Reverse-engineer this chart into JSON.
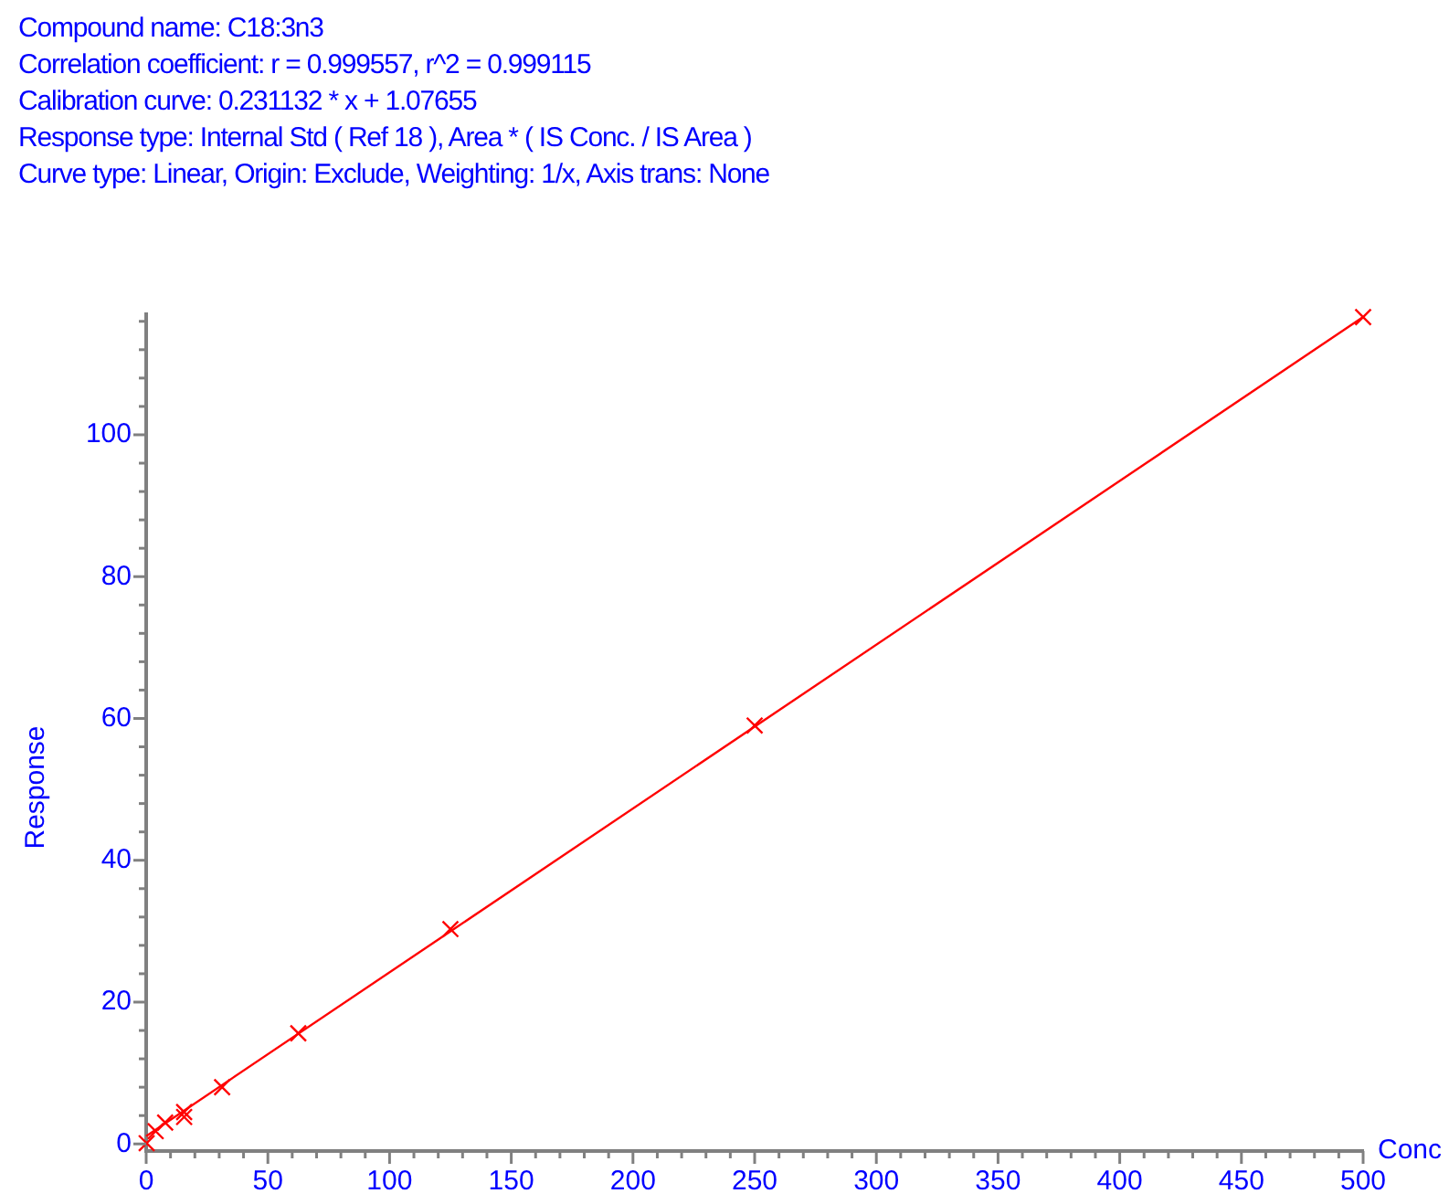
{
  "chart_data": {
    "type": "scatter",
    "title": "Compound name: C18:3n3",
    "annotations": [
      "Correlation coefficient: r = 0.999557, r^2 = 0.999115",
      "Calibration curve: 0.231132 * x + 1.07655",
      "Response type: Internal Std ( Ref 18 ), Area * ( IS Conc. / IS Area )",
      "Curve type: Linear, Origin: Exclude, Weighting: 1/x, Axis trans: None"
    ],
    "xlabel": "Conc",
    "ylabel": "Response",
    "series": [
      {
        "type": "scatter",
        "color": "#ff0000",
        "marker": "cross",
        "x": [
          500,
          250,
          125,
          62.5,
          31.2,
          15.6,
          15.6,
          7.8,
          3.9,
          2,
          1,
          0.5,
          0.2
        ],
        "values": [
          116.6,
          59.0,
          30.3,
          15.6,
          8.0,
          4.5,
          3.8,
          3.0,
          1.8,
          null,
          null,
          null,
          0.1
        ]
      },
      {
        "type": "line",
        "color": "#ff0000",
        "marker": "none",
        "x": [
          0,
          500
        ],
        "values": [
          1.1,
          116.6
        ]
      }
    ],
    "xlim": [
      0,
      500
    ],
    "ylim": [
      -1,
      117
    ],
    "xticks": [
      0,
      {
        "value": 10,
        "label": null
      },
      {
        "value": 20,
        "label": null
      },
      {
        "value": 30,
        "label": null
      },
      {
        "value": 40,
        "label": null
      },
      50,
      {
        "value": 60,
        "label": null
      },
      {
        "value": 70,
        "label": null
      },
      {
        "value": 80,
        "label": null
      },
      {
        "value": 90,
        "label": null
      },
      100,
      {
        "value": 110,
        "label": null
      },
      {
        "value": 120,
        "label": null
      },
      {
        "value": 130,
        "label": null
      },
      {
        "value": 140,
        "label": null
      },
      150,
      {
        "value": 160,
        "label": null
      },
      {
        "value": 170,
        "label": null
      },
      {
        "value": 180,
        "label": null
      },
      {
        "value": 190,
        "label": null
      },
      200,
      {
        "value": 210,
        "label": null
      },
      {
        "value": 220,
        "label": null
      },
      {
        "value": 230,
        "label": null
      },
      {
        "value": 240,
        "label": null
      },
      250,
      {
        "value": 260,
        "label": null
      },
      {
        "value": 270,
        "label": null
      },
      {
        "value": 280,
        "label": null
      },
      {
        "value": 290,
        "label": null
      },
      300,
      {
        "value": 310,
        "label": null
      },
      {
        "value": 320,
        "label": null
      },
      {
        "value": 330,
        "label": null
      },
      {
        "value": 340,
        "label": null
      },
      350,
      {
        "value": 360,
        "label": null
      },
      {
        "value": 370,
        "label": null
      },
      {
        "value": 380,
        "label": null
      },
      {
        "value": 390,
        "label": null
      },
      400,
      {
        "value": 410,
        "label": null
      },
      {
        "value": 420,
        "label": null
      },
      {
        "value": 430,
        "label": null
      },
      {
        "value": 440,
        "label": null
      },
      450,
      {
        "value": 460,
        "label": null
      },
      {
        "value": 470,
        "label": null
      },
      {
        "value": 480,
        "label": null
      },
      {
        "value": 490,
        "label": null
      },
      500
    ],
    "yticks": [
      0,
      {
        "value": 4,
        "label": null
      },
      {
        "value": 8,
        "label": null
      },
      {
        "value": 12,
        "label": null
      },
      {
        "value": 16,
        "label": null
      },
      20,
      {
        "value": 24,
        "label": null
      },
      {
        "value": 28,
        "label": null
      },
      {
        "value": 32,
        "label": null
      },
      {
        "value": 36,
        "label": null
      },
      40,
      {
        "value": 44,
        "label": null
      },
      {
        "value": 48,
        "label": null
      },
      {
        "value": 52,
        "label": null
      },
      {
        "value": 56,
        "label": null
      },
      60,
      {
        "value": 64,
        "label": null
      },
      {
        "value": 68,
        "label": null
      },
      {
        "value": 72,
        "label": null
      },
      {
        "value": 76,
        "label": null
      },
      80,
      {
        "value": 84,
        "label": null
      },
      {
        "value": 88,
        "label": null
      },
      {
        "value": 92,
        "label": null
      },
      {
        "value": 96,
        "label": null
      },
      100,
      {
        "value": 104,
        "label": null
      },
      {
        "value": 108,
        "label": null
      },
      {
        "value": 112,
        "label": null
      },
      {
        "value": 116,
        "label": null
      }
    ],
    "grid": false,
    "legend": false
  }
}
